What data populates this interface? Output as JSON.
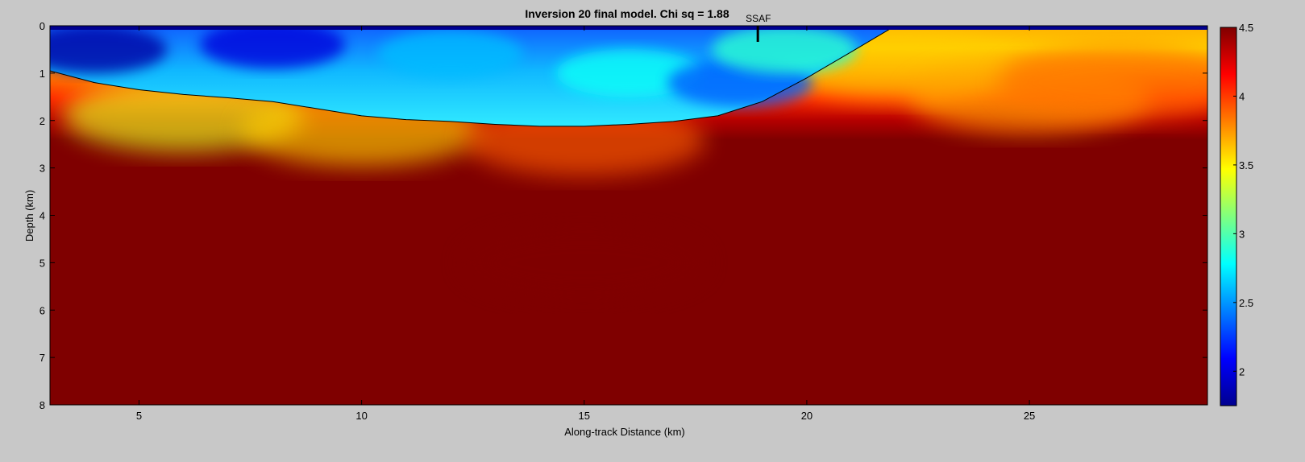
{
  "chart_data": {
    "type": "heatmap",
    "title": "Inversion 20 final model.  Chi sq = 1.88",
    "xlabel": "Along-track Distance (km)",
    "ylabel": "Depth (km)",
    "xlim": [
      3,
      29
    ],
    "ylim": [
      0,
      8
    ],
    "y_reversed": true,
    "x_ticks": [
      5,
      10,
      15,
      20,
      25
    ],
    "y_ticks": [
      0,
      1,
      2,
      3,
      4,
      5,
      6,
      7,
      8
    ],
    "colormap": "jet",
    "colorbar": {
      "range": [
        1.75,
        4.5
      ],
      "ticks": [
        2,
        2.5,
        3,
        3.5,
        4,
        4.5
      ],
      "tick_labels": [
        "2",
        "2.5",
        "3",
        "3.5",
        "4",
        "4.5"
      ]
    },
    "annotation": {
      "label": "SSAF",
      "x": 18.9
    },
    "boundary": {
      "x": [
        3,
        4,
        5,
        6,
        7,
        8,
        9,
        10,
        11,
        12,
        13,
        14,
        15,
        16,
        17,
        18,
        19,
        20,
        21,
        21.9
      ],
      "y": [
        0.95,
        1.2,
        1.35,
        1.45,
        1.52,
        1.6,
        1.75,
        1.9,
        1.98,
        2.02,
        2.08,
        2.12,
        2.12,
        2.08,
        2.02,
        1.9,
        1.6,
        1.1,
        0.55,
        0.05
      ]
    },
    "velocity_samples": [
      {
        "x": 4,
        "y": 0.5,
        "v": 1.85
      },
      {
        "x": 8,
        "y": 0.4,
        "v": 2.0
      },
      {
        "x": 12,
        "y": 0.6,
        "v": 2.6
      },
      {
        "x": 16,
        "y": 1.0,
        "v": 2.8
      },
      {
        "x": 18.5,
        "y": 1.2,
        "v": 2.35
      },
      {
        "x": 19.5,
        "y": 0.5,
        "v": 2.9
      },
      {
        "x": 6,
        "y": 1.9,
        "v": 3.4
      },
      {
        "x": 10,
        "y": 2.2,
        "v": 3.6
      },
      {
        "x": 15,
        "y": 2.4,
        "v": 3.9
      },
      {
        "x": 22,
        "y": 0.8,
        "v": 3.6
      },
      {
        "x": 25,
        "y": 1.5,
        "v": 3.7
      },
      {
        "x": 27,
        "y": 1.2,
        "v": 3.85
      },
      {
        "x": 15,
        "y": 5.0,
        "v": 4.5
      }
    ]
  }
}
